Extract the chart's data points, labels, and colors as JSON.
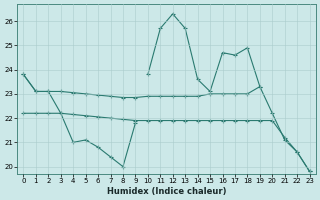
{
  "xlabel": "Humidex (Indice chaleur)",
  "x_values": [
    0,
    1,
    2,
    3,
    4,
    5,
    6,
    7,
    8,
    9,
    10,
    11,
    12,
    13,
    14,
    15,
    16,
    17,
    18,
    19,
    20,
    21,
    22,
    23
  ],
  "lines": [
    [
      23.8,
      23.1,
      23.1,
      22.2,
      21.0,
      21.1,
      20.8,
      20.4,
      20.0,
      21.8,
      null,
      null,
      null,
      null,
      null,
      null,
      null,
      null,
      null,
      null,
      null,
      null,
      null,
      null
    ],
    [
      null,
      null,
      null,
      null,
      null,
      null,
      null,
      null,
      null,
      null,
      23.8,
      25.7,
      26.3,
      25.7,
      23.6,
      23.1,
      24.7,
      24.6,
      24.9,
      23.3,
      22.2,
      21.1,
      20.6,
      19.8
    ],
    [
      22.2,
      22.2,
      22.2,
      22.2,
      22.15,
      22.1,
      22.05,
      22.0,
      21.95,
      21.9,
      21.9,
      21.9,
      21.9,
      21.9,
      21.9,
      21.9,
      21.9,
      21.9,
      21.9,
      21.9,
      21.9,
      21.2,
      20.6,
      19.8
    ],
    [
      23.8,
      23.1,
      23.1,
      23.1,
      23.05,
      23.0,
      22.95,
      22.9,
      22.85,
      22.85,
      22.9,
      22.9,
      22.9,
      22.9,
      22.9,
      23.0,
      23.0,
      23.0,
      23.0,
      23.3,
      null,
      null,
      null,
      null
    ]
  ],
  "color": "#2a7a70",
  "bg_color": "#cce8e8",
  "plot_bg": "#cce8e8",
  "grid_color": "#aacccc",
  "ylim": [
    19.7,
    26.7
  ],
  "yticks": [
    20,
    21,
    22,
    23,
    24,
    25,
    26
  ],
  "xticks": [
    0,
    1,
    2,
    3,
    4,
    5,
    6,
    7,
    8,
    9,
    10,
    11,
    12,
    13,
    14,
    15,
    16,
    17,
    18,
    19,
    20,
    21,
    22,
    23
  ]
}
